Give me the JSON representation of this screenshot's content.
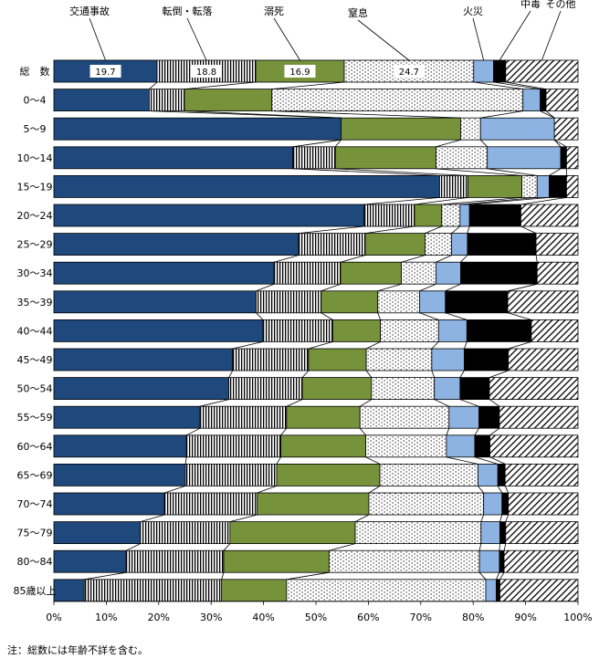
{
  "chart_data": {
    "type": "bar",
    "orientation": "horizontal",
    "stacked": true,
    "normalized": true,
    "legend_placement": "top",
    "grid": false,
    "xlim": [
      0,
      100
    ],
    "x_ticks": [
      "0%",
      "10%",
      "20%",
      "30%",
      "40%",
      "50%",
      "60%",
      "70%",
      "80%",
      "90%",
      "100%"
    ],
    "categories": [
      "総　数",
      "0～4",
      "5～9",
      "10～14",
      "15～19",
      "20～24",
      "25～29",
      "30～34",
      "35～39",
      "40～44",
      "45～49",
      "50～54",
      "55～59",
      "60～64",
      "65～69",
      "70～74",
      "75～79",
      "80～84",
      "85歳以上"
    ],
    "series": [
      {
        "name": "交通事故",
        "color": "#1f497d",
        "pattern": "solid",
        "values": [
          19.7,
          18.2,
          54.8,
          45.6,
          73.6,
          59.2,
          46.7,
          42.0,
          38.6,
          39.9,
          34.1,
          33.4,
          27.9,
          25.3,
          25.1,
          21.1,
          16.5,
          13.8,
          5.8
        ]
      },
      {
        "name": "転倒・転落",
        "color": "#000000",
        "pattern": "vertical",
        "values": [
          18.8,
          6.7,
          0.0,
          8.1,
          5.4,
          9.6,
          12.7,
          12.7,
          12.4,
          13.3,
          14.5,
          14.0,
          16.5,
          18.0,
          17.4,
          17.7,
          17.1,
          18.6,
          26.2
        ]
      },
      {
        "name": "溺死",
        "color": "#76933c",
        "pattern": "solid",
        "values": [
          16.9,
          16.7,
          22.8,
          19.2,
          10.3,
          5.2,
          11.4,
          11.6,
          10.8,
          9.1,
          11.0,
          13.2,
          14.0,
          16.2,
          19.7,
          21.3,
          23.9,
          20.1,
          12.4
        ]
      },
      {
        "name": "窒息",
        "color": "#000000",
        "pattern": "dots",
        "values": [
          24.7,
          47.9,
          3.8,
          9.8,
          2.9,
          3.5,
          5.1,
          6.6,
          8.0,
          11.1,
          12.5,
          12.0,
          17.0,
          15.4,
          18.7,
          21.9,
          24.0,
          28.7,
          38.0
        ]
      },
      {
        "name": "火災",
        "color": "#8db3e2",
        "pattern": "solid",
        "values": [
          3.8,
          3.3,
          14.1,
          14.0,
          2.3,
          1.8,
          3.0,
          4.7,
          4.9,
          5.4,
          6.2,
          4.9,
          5.7,
          5.4,
          3.8,
          3.5,
          3.6,
          3.8,
          2.0
        ]
      },
      {
        "name": "中毒",
        "color": "#000000",
        "pattern": "solid",
        "values": [
          2.3,
          1.1,
          0.0,
          1.1,
          3.3,
          9.8,
          13.1,
          14.6,
          11.9,
          12.3,
          8.4,
          5.6,
          3.9,
          2.9,
          1.4,
          1.2,
          1.1,
          0.9,
          0.7
        ]
      },
      {
        "name": "その他",
        "color": "#000000",
        "pattern": "diagonal",
        "values": [
          13.8,
          6.1,
          4.5,
          2.2,
          2.2,
          10.9,
          8.0,
          7.8,
          13.4,
          8.9,
          13.3,
          16.9,
          15.0,
          16.8,
          13.9,
          13.3,
          13.8,
          14.1,
          14.9
        ]
      }
    ],
    "data_labels_row0": [
      "19.7",
      "18.8",
      "16.9",
      "24.7"
    ]
  },
  "note": "注：総数には年齢不詳を含む。"
}
